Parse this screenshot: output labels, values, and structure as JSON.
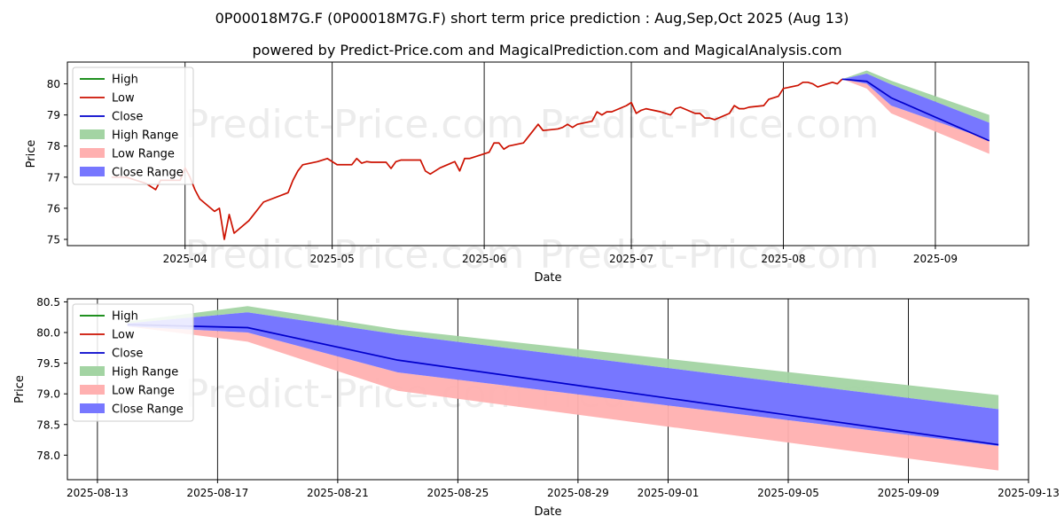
{
  "title": "0P00018M7G.F (0P00018M7G.F) short term price prediction : Aug,Sep,Oct 2025 (Aug 13)",
  "subtitle": "powered by Predict-Price.com and MagicalPrediction.com and MagicalAnalysis.com",
  "watermark": "Predict-Price.com",
  "legend": [
    "High",
    "Low",
    "Close",
    "High Range",
    "Low Range",
    "Close Range"
  ],
  "colors": {
    "high": "#008000",
    "low": "#cc1100",
    "close": "#0000cc",
    "high_range": "#a3d4a3",
    "low_range": "#ffb0b0",
    "close_range": "#7777ff"
  },
  "chart_data": [
    {
      "type": "line",
      "xlabel": "Date",
      "ylabel": "Price",
      "x_ticks": [
        "2025-04",
        "2025-05",
        "2025-06",
        "2025-07",
        "2025-08",
        "2025-09"
      ],
      "y_ticks": [
        75,
        76,
        77,
        78,
        79,
        80
      ],
      "xlim": [
        "2025-03-08",
        "2025-09-20"
      ],
      "ylim": [
        74.8,
        80.7
      ],
      "legend_position": "upper-left",
      "series": [
        {
          "name": "Low",
          "x": [
            "2025-03-17",
            "2025-03-20",
            "2025-03-24",
            "2025-03-26",
            "2025-03-27",
            "2025-03-28",
            "2025-03-31",
            "2025-04-01",
            "2025-04-02",
            "2025-04-03",
            "2025-04-04",
            "2025-04-07",
            "2025-04-08",
            "2025-04-09",
            "2025-04-10",
            "2025-04-11",
            "2025-04-14",
            "2025-04-15",
            "2025-04-16",
            "2025-04-17",
            "2025-04-22",
            "2025-04-23",
            "2025-04-24",
            "2025-04-25",
            "2025-04-28",
            "2025-04-29",
            "2025-04-30",
            "2025-05-02",
            "2025-05-05",
            "2025-05-06",
            "2025-05-07",
            "2025-05-08",
            "2025-05-09",
            "2025-05-12",
            "2025-05-13",
            "2025-05-14",
            "2025-05-15",
            "2025-05-16",
            "2025-05-19",
            "2025-05-20",
            "2025-05-21",
            "2025-05-22",
            "2025-05-23",
            "2025-05-26",
            "2025-05-27",
            "2025-05-28",
            "2025-05-29",
            "2025-06-02",
            "2025-06-03",
            "2025-06-04",
            "2025-06-05",
            "2025-06-06",
            "2025-06-09",
            "2025-06-10",
            "2025-06-11",
            "2025-06-12",
            "2025-06-13",
            "2025-06-16",
            "2025-06-17",
            "2025-06-18",
            "2025-06-19",
            "2025-06-20",
            "2025-06-23",
            "2025-06-24",
            "2025-06-25",
            "2025-06-26",
            "2025-06-27",
            "2025-06-30",
            "2025-07-01",
            "2025-07-02",
            "2025-07-03",
            "2025-07-04",
            "2025-07-07",
            "2025-07-08",
            "2025-07-09",
            "2025-07-10",
            "2025-07-11",
            "2025-07-14",
            "2025-07-15",
            "2025-07-16",
            "2025-07-17",
            "2025-07-18",
            "2025-07-21",
            "2025-07-22",
            "2025-07-23",
            "2025-07-24",
            "2025-07-25",
            "2025-07-28",
            "2025-07-29",
            "2025-07-30",
            "2025-07-31",
            "2025-08-01",
            "2025-08-04",
            "2025-08-05",
            "2025-08-06",
            "2025-08-07",
            "2025-08-08",
            "2025-08-11",
            "2025-08-12",
            "2025-08-13"
          ],
          "values": [
            77.0,
            77.0,
            76.8,
            76.6,
            76.9,
            76.9,
            76.9,
            77.3,
            77.0,
            76.6,
            76.3,
            75.9,
            76.0,
            75.0,
            75.8,
            75.2,
            75.6,
            75.8,
            76.0,
            76.2,
            76.5,
            76.9,
            77.2,
            77.4,
            77.5,
            77.55,
            77.6,
            77.4,
            77.4,
            77.6,
            77.45,
            77.5,
            77.48,
            77.48,
            77.28,
            77.5,
            77.55,
            77.55,
            77.55,
            77.2,
            77.1,
            77.2,
            77.3,
            77.5,
            77.2,
            77.6,
            77.6,
            77.8,
            78.1,
            78.1,
            77.9,
            78.0,
            78.1,
            78.3,
            78.5,
            78.7,
            78.5,
            78.55,
            78.6,
            78.7,
            78.6,
            78.7,
            78.8,
            79.1,
            79.0,
            79.1,
            79.1,
            79.3,
            79.4,
            79.05,
            79.15,
            79.2,
            79.1,
            79.05,
            79.0,
            79.2,
            79.25,
            79.05,
            79.05,
            78.9,
            78.9,
            78.85,
            79.05,
            79.3,
            79.2,
            79.2,
            79.25,
            79.3,
            79.5,
            79.55,
            79.6,
            79.85,
            79.95,
            80.05,
            80.05,
            80.0,
            79.9,
            80.05,
            80.0,
            80.15
          ]
        },
        {
          "name": "High Range",
          "x": [
            "2025-08-13",
            "2025-08-18",
            "2025-08-23",
            "2025-09-12"
          ],
          "upper": [
            80.15,
            80.43,
            80.1,
            79.0
          ],
          "lower": [
            80.15,
            80.33,
            79.98,
            78.75
          ]
        },
        {
          "name": "Low Range",
          "x": [
            "2025-08-13",
            "2025-08-18",
            "2025-08-23",
            "2025-09-12"
          ],
          "upper": [
            80.15,
            80.0,
            79.3,
            78.2
          ],
          "lower": [
            80.15,
            79.85,
            79.05,
            77.75
          ]
        },
        {
          "name": "Close Range",
          "x": [
            "2025-08-13",
            "2025-08-18",
            "2025-08-23",
            "2025-09-12"
          ],
          "upper": [
            80.15,
            80.33,
            79.98,
            78.75
          ],
          "lower": [
            80.15,
            80.0,
            79.3,
            78.2
          ]
        },
        {
          "name": "Close",
          "x": [
            "2025-08-13",
            "2025-08-18",
            "2025-08-23",
            "2025-09-12"
          ],
          "values": [
            80.15,
            80.08,
            79.55,
            78.17
          ]
        }
      ]
    },
    {
      "type": "line",
      "xlabel": "Date",
      "ylabel": "Price",
      "x_ticks": [
        "2025-08-13",
        "2025-08-17",
        "2025-08-21",
        "2025-08-25",
        "2025-08-29",
        "2025-09-01",
        "2025-09-05",
        "2025-09-09",
        "2025-09-13"
      ],
      "y_ticks": [
        "78.0",
        "78.5",
        "79.0",
        "79.5",
        "80.0",
        "80.5"
      ],
      "xlim": [
        "2025-08-12",
        "2025-09-13"
      ],
      "ylim": [
        77.6,
        80.55
      ],
      "legend_position": "upper-left",
      "series": [
        {
          "name": "High Range",
          "x": [
            "2025-08-14",
            "2025-08-18",
            "2025-08-23",
            "2025-09-12"
          ],
          "upper": [
            80.18,
            80.43,
            80.05,
            78.98
          ],
          "lower": [
            80.15,
            80.33,
            79.97,
            78.75
          ]
        },
        {
          "name": "Low Range",
          "x": [
            "2025-08-14",
            "2025-08-18",
            "2025-08-23",
            "2025-09-12"
          ],
          "upper": [
            80.1,
            80.0,
            79.35,
            78.15
          ],
          "lower": [
            80.1,
            79.85,
            79.05,
            77.75
          ]
        },
        {
          "name": "Close Range",
          "x": [
            "2025-08-14",
            "2025-08-18",
            "2025-08-23",
            "2025-09-12"
          ],
          "upper": [
            80.15,
            80.33,
            79.97,
            78.75
          ],
          "lower": [
            80.1,
            80.0,
            79.35,
            78.15
          ]
        },
        {
          "name": "Close",
          "x": [
            "2025-08-14",
            "2025-08-18",
            "2025-08-23",
            "2025-09-12"
          ],
          "values": [
            80.13,
            80.08,
            79.55,
            78.17
          ]
        }
      ]
    }
  ]
}
